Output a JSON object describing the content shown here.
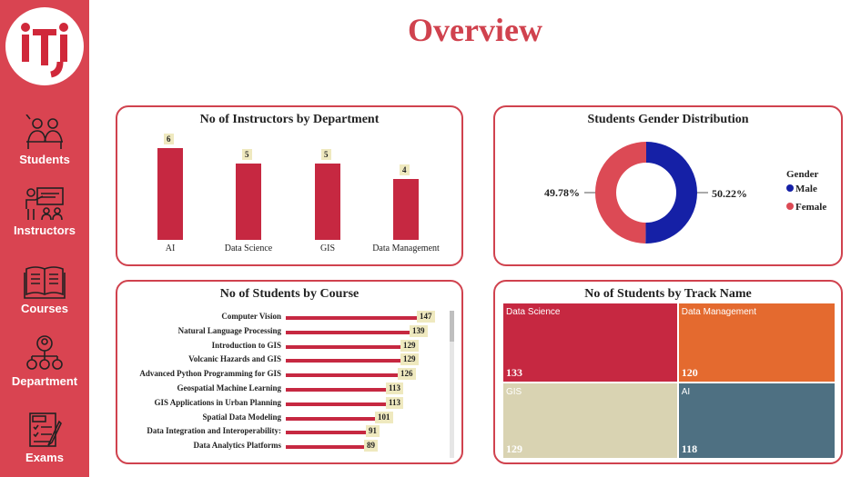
{
  "page": {
    "title": "Overview"
  },
  "logo": {
    "text": "iti"
  },
  "nav": [
    {
      "label": "Students",
      "icon": "students-icon"
    },
    {
      "label": "Instructors",
      "icon": "instructor-icon"
    },
    {
      "label": "Courses",
      "icon": "book-icon"
    },
    {
      "label": "Department",
      "icon": "org-chart-icon"
    },
    {
      "label": "Exams",
      "icon": "exam-icon"
    }
  ],
  "colors": {
    "sidebar": "#d94451",
    "accent": "#c62841",
    "male": "#1520a6",
    "female": "#dc4a55",
    "treemap": [
      "#c62841",
      "#e46a2f",
      "#d9d3b2",
      "#4e7082"
    ]
  },
  "chart_data": [
    {
      "type": "bar",
      "title": "No of Instructors by Department",
      "categories": [
        "AI",
        "Data Science",
        "GIS",
        "Data Management"
      ],
      "values": [
        6,
        5,
        5,
        4
      ],
      "ylim": [
        0,
        7
      ]
    },
    {
      "type": "pie",
      "title": "Students Gender Distribution",
      "legend_title": "Gender",
      "labels": [
        "Male",
        "Female"
      ],
      "values": [
        50.22,
        49.78
      ],
      "value_labels": [
        "50.22%",
        "49.78%"
      ],
      "donut": true,
      "legend_position": "right"
    },
    {
      "type": "bar",
      "orientation": "horizontal",
      "title": "No of Students by Course",
      "categories": [
        "Computer Vision",
        "Natural Language Processing",
        "Introduction to GIS",
        "Volcanic Hazards and GIS",
        "Advanced Python Programming for GIS",
        "Geospatial Machine Learning",
        "GIS Applications in Urban Planning",
        "Spatial Data Modeling",
        "Data Integration and Interoperability:",
        "Data Analytics Platforms"
      ],
      "values": [
        147,
        139,
        129,
        129,
        126,
        113,
        113,
        101,
        91,
        89
      ],
      "xlim": [
        0,
        150
      ]
    },
    {
      "type": "treemap",
      "title": "No of Students by Track Name",
      "categories": [
        "Data Science",
        "Data Management",
        "GIS",
        "AI"
      ],
      "values": [
        133,
        120,
        129,
        118
      ]
    }
  ]
}
